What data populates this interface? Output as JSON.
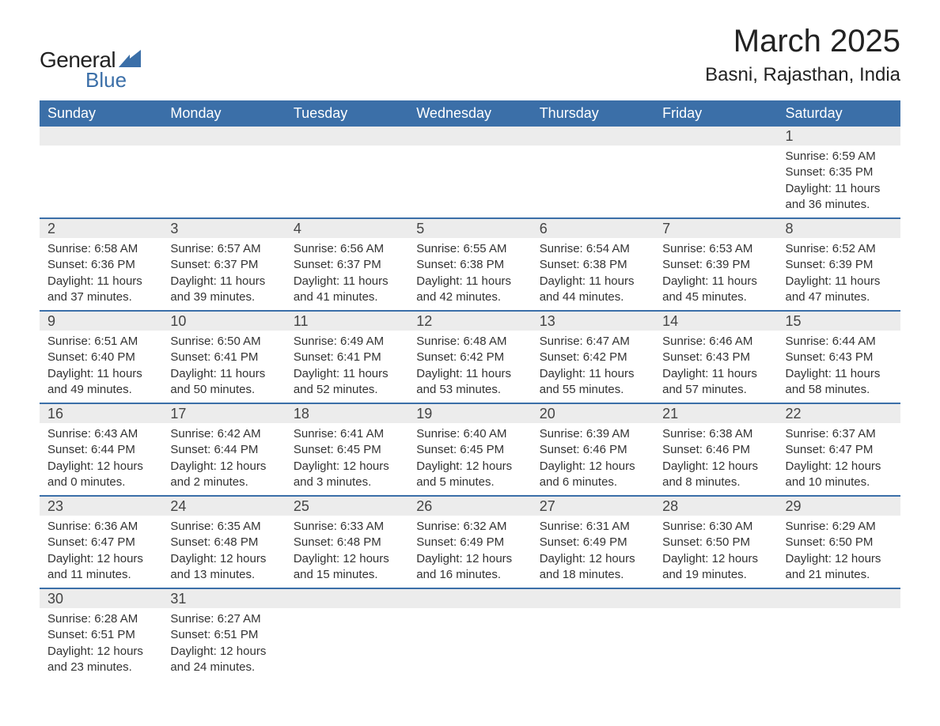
{
  "logo": {
    "general": "General",
    "blue": "Blue",
    "accent_color": "#3b6fa8"
  },
  "title": "March 2025",
  "subtitle": "Basni, Rajasthan, India",
  "colors": {
    "header_bg": "#3b6fa8",
    "header_text": "#ffffff",
    "daynum_bg": "#ececec",
    "row_divider": "#3b6fa8",
    "body_text": "#333333",
    "page_bg": "#ffffff"
  },
  "typography": {
    "title_fontsize": 40,
    "subtitle_fontsize": 24,
    "header_fontsize": 18,
    "daynum_fontsize": 18,
    "body_fontsize": 15
  },
  "day_headers": [
    "Sunday",
    "Monday",
    "Tuesday",
    "Wednesday",
    "Thursday",
    "Friday",
    "Saturday"
  ],
  "weeks": [
    [
      null,
      null,
      null,
      null,
      null,
      null,
      {
        "n": "1",
        "sunrise": "Sunrise: 6:59 AM",
        "sunset": "Sunset: 6:35 PM",
        "dl1": "Daylight: 11 hours",
        "dl2": "and 36 minutes."
      }
    ],
    [
      {
        "n": "2",
        "sunrise": "Sunrise: 6:58 AM",
        "sunset": "Sunset: 6:36 PM",
        "dl1": "Daylight: 11 hours",
        "dl2": "and 37 minutes."
      },
      {
        "n": "3",
        "sunrise": "Sunrise: 6:57 AM",
        "sunset": "Sunset: 6:37 PM",
        "dl1": "Daylight: 11 hours",
        "dl2": "and 39 minutes."
      },
      {
        "n": "4",
        "sunrise": "Sunrise: 6:56 AM",
        "sunset": "Sunset: 6:37 PM",
        "dl1": "Daylight: 11 hours",
        "dl2": "and 41 minutes."
      },
      {
        "n": "5",
        "sunrise": "Sunrise: 6:55 AM",
        "sunset": "Sunset: 6:38 PM",
        "dl1": "Daylight: 11 hours",
        "dl2": "and 42 minutes."
      },
      {
        "n": "6",
        "sunrise": "Sunrise: 6:54 AM",
        "sunset": "Sunset: 6:38 PM",
        "dl1": "Daylight: 11 hours",
        "dl2": "and 44 minutes."
      },
      {
        "n": "7",
        "sunrise": "Sunrise: 6:53 AM",
        "sunset": "Sunset: 6:39 PM",
        "dl1": "Daylight: 11 hours",
        "dl2": "and 45 minutes."
      },
      {
        "n": "8",
        "sunrise": "Sunrise: 6:52 AM",
        "sunset": "Sunset: 6:39 PM",
        "dl1": "Daylight: 11 hours",
        "dl2": "and 47 minutes."
      }
    ],
    [
      {
        "n": "9",
        "sunrise": "Sunrise: 6:51 AM",
        "sunset": "Sunset: 6:40 PM",
        "dl1": "Daylight: 11 hours",
        "dl2": "and 49 minutes."
      },
      {
        "n": "10",
        "sunrise": "Sunrise: 6:50 AM",
        "sunset": "Sunset: 6:41 PM",
        "dl1": "Daylight: 11 hours",
        "dl2": "and 50 minutes."
      },
      {
        "n": "11",
        "sunrise": "Sunrise: 6:49 AM",
        "sunset": "Sunset: 6:41 PM",
        "dl1": "Daylight: 11 hours",
        "dl2": "and 52 minutes."
      },
      {
        "n": "12",
        "sunrise": "Sunrise: 6:48 AM",
        "sunset": "Sunset: 6:42 PM",
        "dl1": "Daylight: 11 hours",
        "dl2": "and 53 minutes."
      },
      {
        "n": "13",
        "sunrise": "Sunrise: 6:47 AM",
        "sunset": "Sunset: 6:42 PM",
        "dl1": "Daylight: 11 hours",
        "dl2": "and 55 minutes."
      },
      {
        "n": "14",
        "sunrise": "Sunrise: 6:46 AM",
        "sunset": "Sunset: 6:43 PM",
        "dl1": "Daylight: 11 hours",
        "dl2": "and 57 minutes."
      },
      {
        "n": "15",
        "sunrise": "Sunrise: 6:44 AM",
        "sunset": "Sunset: 6:43 PM",
        "dl1": "Daylight: 11 hours",
        "dl2": "and 58 minutes."
      }
    ],
    [
      {
        "n": "16",
        "sunrise": "Sunrise: 6:43 AM",
        "sunset": "Sunset: 6:44 PM",
        "dl1": "Daylight: 12 hours",
        "dl2": "and 0 minutes."
      },
      {
        "n": "17",
        "sunrise": "Sunrise: 6:42 AM",
        "sunset": "Sunset: 6:44 PM",
        "dl1": "Daylight: 12 hours",
        "dl2": "and 2 minutes."
      },
      {
        "n": "18",
        "sunrise": "Sunrise: 6:41 AM",
        "sunset": "Sunset: 6:45 PM",
        "dl1": "Daylight: 12 hours",
        "dl2": "and 3 minutes."
      },
      {
        "n": "19",
        "sunrise": "Sunrise: 6:40 AM",
        "sunset": "Sunset: 6:45 PM",
        "dl1": "Daylight: 12 hours",
        "dl2": "and 5 minutes."
      },
      {
        "n": "20",
        "sunrise": "Sunrise: 6:39 AM",
        "sunset": "Sunset: 6:46 PM",
        "dl1": "Daylight: 12 hours",
        "dl2": "and 6 minutes."
      },
      {
        "n": "21",
        "sunrise": "Sunrise: 6:38 AM",
        "sunset": "Sunset: 6:46 PM",
        "dl1": "Daylight: 12 hours",
        "dl2": "and 8 minutes."
      },
      {
        "n": "22",
        "sunrise": "Sunrise: 6:37 AM",
        "sunset": "Sunset: 6:47 PM",
        "dl1": "Daylight: 12 hours",
        "dl2": "and 10 minutes."
      }
    ],
    [
      {
        "n": "23",
        "sunrise": "Sunrise: 6:36 AM",
        "sunset": "Sunset: 6:47 PM",
        "dl1": "Daylight: 12 hours",
        "dl2": "and 11 minutes."
      },
      {
        "n": "24",
        "sunrise": "Sunrise: 6:35 AM",
        "sunset": "Sunset: 6:48 PM",
        "dl1": "Daylight: 12 hours",
        "dl2": "and 13 minutes."
      },
      {
        "n": "25",
        "sunrise": "Sunrise: 6:33 AM",
        "sunset": "Sunset: 6:48 PM",
        "dl1": "Daylight: 12 hours",
        "dl2": "and 15 minutes."
      },
      {
        "n": "26",
        "sunrise": "Sunrise: 6:32 AM",
        "sunset": "Sunset: 6:49 PM",
        "dl1": "Daylight: 12 hours",
        "dl2": "and 16 minutes."
      },
      {
        "n": "27",
        "sunrise": "Sunrise: 6:31 AM",
        "sunset": "Sunset: 6:49 PM",
        "dl1": "Daylight: 12 hours",
        "dl2": "and 18 minutes."
      },
      {
        "n": "28",
        "sunrise": "Sunrise: 6:30 AM",
        "sunset": "Sunset: 6:50 PM",
        "dl1": "Daylight: 12 hours",
        "dl2": "and 19 minutes."
      },
      {
        "n": "29",
        "sunrise": "Sunrise: 6:29 AM",
        "sunset": "Sunset: 6:50 PM",
        "dl1": "Daylight: 12 hours",
        "dl2": "and 21 minutes."
      }
    ],
    [
      {
        "n": "30",
        "sunrise": "Sunrise: 6:28 AM",
        "sunset": "Sunset: 6:51 PM",
        "dl1": "Daylight: 12 hours",
        "dl2": "and 23 minutes."
      },
      {
        "n": "31",
        "sunrise": "Sunrise: 6:27 AM",
        "sunset": "Sunset: 6:51 PM",
        "dl1": "Daylight: 12 hours",
        "dl2": "and 24 minutes."
      },
      null,
      null,
      null,
      null,
      null
    ]
  ]
}
